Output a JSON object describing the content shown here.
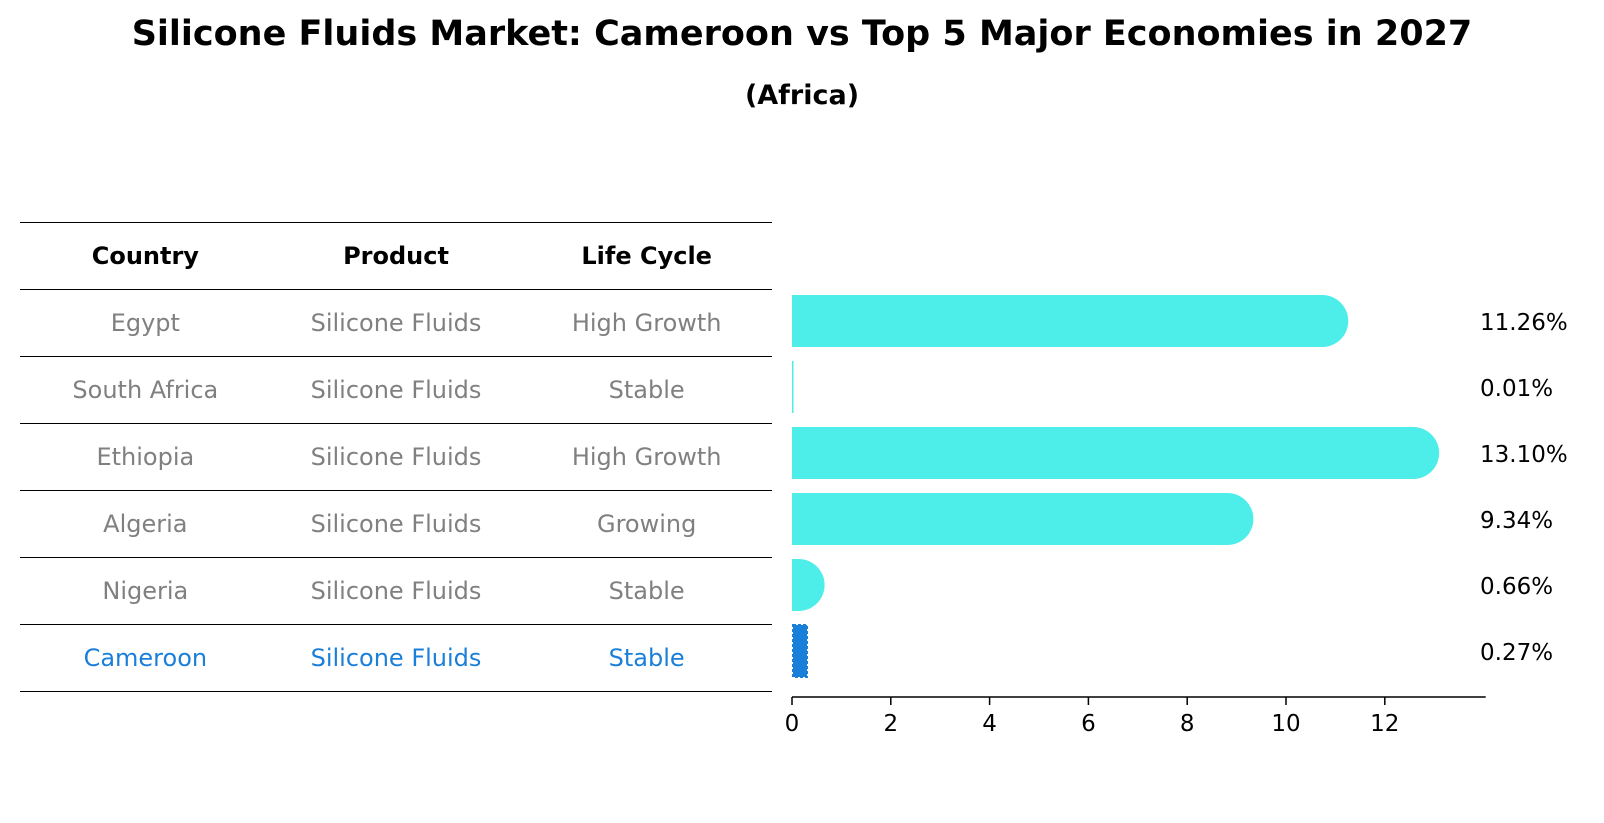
{
  "title": "Silicone Fluids Market: Cameroon vs Top 5 Major Economies in 2027",
  "subtitle": "(Africa)",
  "table": {
    "headers": [
      "Country",
      "Product",
      "Life Cycle"
    ],
    "rows": [
      {
        "country": "Egypt",
        "product": "Silicone Fluids",
        "life_cycle": "High Growth"
      },
      {
        "country": "South Africa",
        "product": "Silicone Fluids",
        "life_cycle": "Stable"
      },
      {
        "country": "Ethiopia",
        "product": "Silicone Fluids",
        "life_cycle": "High Growth"
      },
      {
        "country": "Algeria",
        "product": "Silicone Fluids",
        "life_cycle": "Growing"
      },
      {
        "country": "Nigeria",
        "product": "Silicone Fluids",
        "life_cycle": "Stable"
      },
      {
        "country": "Cameroon",
        "product": "Silicone Fluids",
        "life_cycle": "Stable"
      }
    ],
    "highlight_row": 5
  },
  "colors": {
    "bar": "#4deee9",
    "highlight": "#1a7fd9",
    "muted_text": "#808080"
  },
  "chart_data": {
    "type": "bar",
    "orientation": "horizontal",
    "categories": [
      "Egypt",
      "South Africa",
      "Ethiopia",
      "Algeria",
      "Nigeria",
      "Cameroon"
    ],
    "values": [
      11.26,
      0.01,
      13.1,
      9.34,
      0.66,
      0.27
    ],
    "value_labels": [
      "11.26%",
      "0.01%",
      "13.10%",
      "9.34%",
      "0.66%",
      "0.27%"
    ],
    "xlim": [
      0,
      13.8
    ],
    "xticks": [
      0,
      2,
      4,
      6,
      8,
      10,
      12
    ],
    "highlight_index": 5
  }
}
